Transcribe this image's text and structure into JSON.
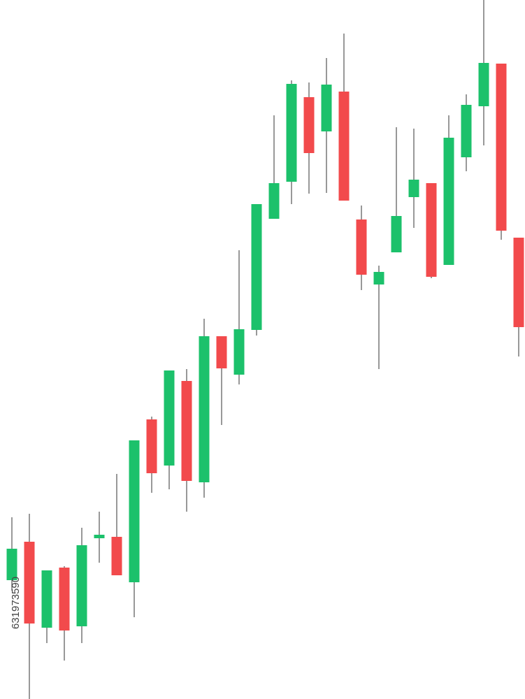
{
  "chart_data": {
    "type": "candlestick",
    "annotation": "631973590",
    "up_color": "#1cc16b",
    "down_color": "#f24a4c",
    "wick_color": "#555555",
    "ylim": [
      0,
      1000
    ],
    "open": [
      170,
      225,
      102,
      188,
      104,
      230,
      232,
      167,
      400,
      334,
      455,
      310,
      519,
      464,
      528,
      687,
      740,
      861,
      812,
      869,
      686,
      593,
      639,
      718,
      738,
      621,
      775,
      848,
      909,
      660
    ],
    "close": [
      215,
      108,
      184,
      98,
      220,
      235,
      177,
      370,
      323,
      470,
      312,
      519,
      473,
      529,
      708,
      738,
      880,
      781,
      879,
      713,
      607,
      611,
      691,
      743,
      604,
      803,
      850,
      910,
      670,
      532
    ],
    "high": [
      260,
      265,
      184,
      190,
      245,
      268,
      322,
      370,
      404,
      470,
      472,
      544,
      519,
      642,
      708,
      835,
      885,
      882,
      917,
      952,
      706,
      620,
      818,
      816,
      738,
      835,
      865,
      1000,
      909,
      660
    ],
    "low": [
      155,
      0,
      80,
      55,
      80,
      195,
      177,
      117,
      295,
      300,
      268,
      288,
      392,
      450,
      520,
      687,
      708,
      723,
      724,
      713,
      585,
      472,
      639,
      674,
      602,
      621,
      755,
      792,
      657,
      490
    ]
  }
}
